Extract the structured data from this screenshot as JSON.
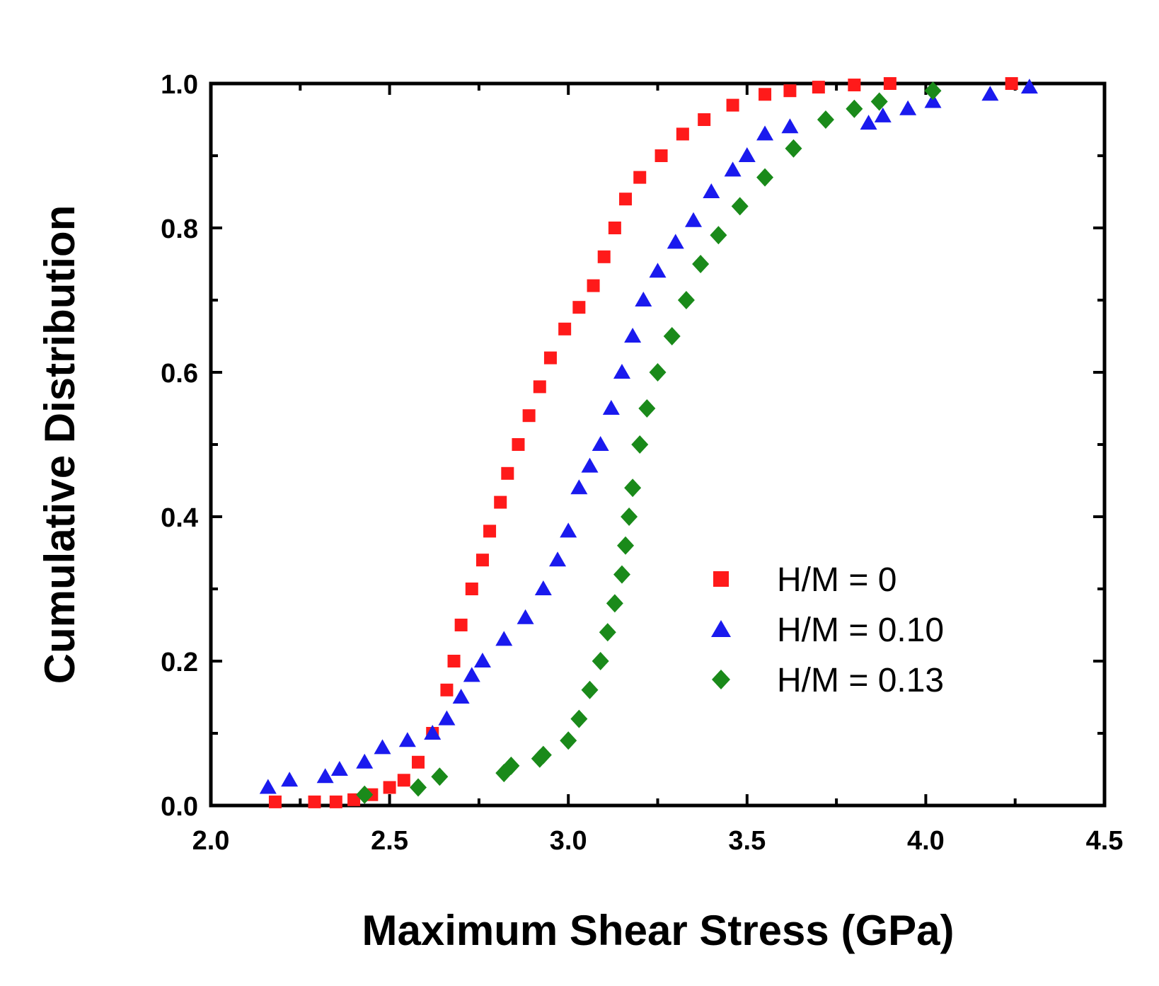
{
  "chart_data": {
    "type": "scatter",
    "title": "",
    "xlabel": "Maximum Shear Stress (GPa)",
    "ylabel": "Cumulative Distribution",
    "xlim": [
      2.0,
      4.5
    ],
    "ylim": [
      0.0,
      1.0
    ],
    "x_ticks": [
      "2.0",
      "2.5",
      "3.0",
      "3.5",
      "4.0",
      "4.5"
    ],
    "y_ticks": [
      "0.0",
      "0.2",
      "0.4",
      "0.6",
      "0.8",
      "1.0"
    ],
    "legend_position": "center-right",
    "grid": false,
    "series": [
      {
        "name": "H/M = 0",
        "marker": "square",
        "color": "#ff1a1a",
        "points": [
          [
            2.18,
            0.005
          ],
          [
            2.29,
            0.005
          ],
          [
            2.35,
            0.005
          ],
          [
            2.4,
            0.008
          ],
          [
            2.45,
            0.015
          ],
          [
            2.5,
            0.025
          ],
          [
            2.54,
            0.035
          ],
          [
            2.58,
            0.06
          ],
          [
            2.62,
            0.1
          ],
          [
            2.66,
            0.16
          ],
          [
            2.68,
            0.2
          ],
          [
            2.7,
            0.25
          ],
          [
            2.73,
            0.3
          ],
          [
            2.76,
            0.34
          ],
          [
            2.78,
            0.38
          ],
          [
            2.81,
            0.42
          ],
          [
            2.83,
            0.46
          ],
          [
            2.86,
            0.5
          ],
          [
            2.89,
            0.54
          ],
          [
            2.92,
            0.58
          ],
          [
            2.95,
            0.62
          ],
          [
            2.99,
            0.66
          ],
          [
            3.03,
            0.69
          ],
          [
            3.07,
            0.72
          ],
          [
            3.1,
            0.76
          ],
          [
            3.13,
            0.8
          ],
          [
            3.16,
            0.84
          ],
          [
            3.2,
            0.87
          ],
          [
            3.26,
            0.9
          ],
          [
            3.32,
            0.93
          ],
          [
            3.38,
            0.95
          ],
          [
            3.46,
            0.97
          ],
          [
            3.55,
            0.985
          ],
          [
            3.62,
            0.99
          ],
          [
            3.7,
            0.995
          ],
          [
            3.8,
            0.998
          ],
          [
            3.9,
            1.0
          ],
          [
            4.24,
            1.0
          ]
        ]
      },
      {
        "name": "H/M = 0.10",
        "marker": "triangle",
        "color": "#1a1aee",
        "points": [
          [
            2.16,
            0.025
          ],
          [
            2.22,
            0.035
          ],
          [
            2.32,
            0.04
          ],
          [
            2.36,
            0.05
          ],
          [
            2.43,
            0.06
          ],
          [
            2.48,
            0.08
          ],
          [
            2.55,
            0.09
          ],
          [
            2.62,
            0.1
          ],
          [
            2.66,
            0.12
          ],
          [
            2.7,
            0.15
          ],
          [
            2.73,
            0.18
          ],
          [
            2.76,
            0.2
          ],
          [
            2.82,
            0.23
          ],
          [
            2.88,
            0.26
          ],
          [
            2.93,
            0.3
          ],
          [
            2.97,
            0.34
          ],
          [
            3.0,
            0.38
          ],
          [
            3.03,
            0.44
          ],
          [
            3.06,
            0.47
          ],
          [
            3.09,
            0.5
          ],
          [
            3.12,
            0.55
          ],
          [
            3.15,
            0.6
          ],
          [
            3.18,
            0.65
          ],
          [
            3.21,
            0.7
          ],
          [
            3.25,
            0.74
          ],
          [
            3.3,
            0.78
          ],
          [
            3.35,
            0.81
          ],
          [
            3.4,
            0.85
          ],
          [
            3.46,
            0.88
          ],
          [
            3.5,
            0.9
          ],
          [
            3.55,
            0.93
          ],
          [
            3.62,
            0.94
          ],
          [
            3.84,
            0.945
          ],
          [
            3.88,
            0.955
          ],
          [
            3.95,
            0.965
          ],
          [
            4.02,
            0.975
          ],
          [
            4.18,
            0.985
          ],
          [
            4.29,
            0.995
          ]
        ]
      },
      {
        "name": "H/M = 0.13",
        "marker": "diamond",
        "color": "#1a8a1a",
        "points": [
          [
            2.43,
            0.015
          ],
          [
            2.58,
            0.025
          ],
          [
            2.64,
            0.04
          ],
          [
            2.82,
            0.045
          ],
          [
            2.84,
            0.055
          ],
          [
            2.92,
            0.065
          ],
          [
            2.93,
            0.07
          ],
          [
            3.0,
            0.09
          ],
          [
            3.03,
            0.12
          ],
          [
            3.06,
            0.16
          ],
          [
            3.09,
            0.2
          ],
          [
            3.11,
            0.24
          ],
          [
            3.13,
            0.28
          ],
          [
            3.15,
            0.32
          ],
          [
            3.16,
            0.36
          ],
          [
            3.17,
            0.4
          ],
          [
            3.18,
            0.44
          ],
          [
            3.2,
            0.5
          ],
          [
            3.22,
            0.55
          ],
          [
            3.25,
            0.6
          ],
          [
            3.29,
            0.65
          ],
          [
            3.33,
            0.7
          ],
          [
            3.37,
            0.75
          ],
          [
            3.42,
            0.79
          ],
          [
            3.48,
            0.83
          ],
          [
            3.55,
            0.87
          ],
          [
            3.63,
            0.91
          ],
          [
            3.72,
            0.95
          ],
          [
            3.8,
            0.965
          ],
          [
            3.87,
            0.975
          ],
          [
            4.02,
            0.99
          ]
        ]
      }
    ]
  }
}
